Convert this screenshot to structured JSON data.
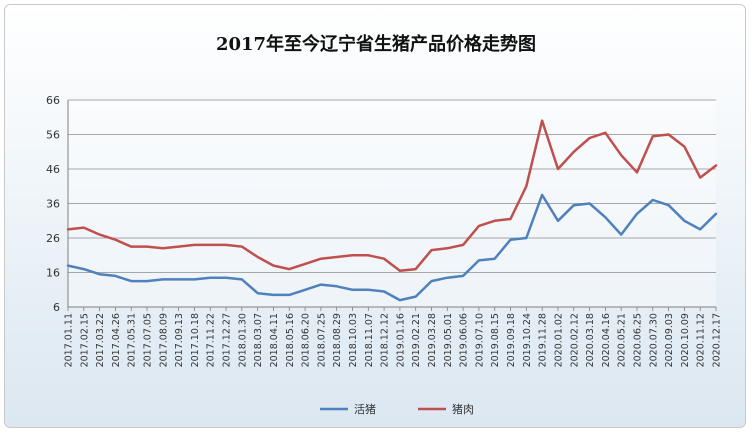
{
  "chart_data": {
    "type": "line",
    "title": "2017年至今辽宁省生猪产品价格走势图",
    "ylim": [
      6,
      66
    ],
    "y_ticks": [
      6,
      16,
      26,
      36,
      46,
      56,
      66
    ],
    "x_ticks": [
      "2017.01.11",
      "2017.02.15",
      "2017.03.22",
      "2017.04.26",
      "2017.05.31",
      "2017.07.05",
      "2017.08.09",
      "2017.09.13",
      "2017.10.18",
      "2017.11.22",
      "2017.12.27",
      "2018.01.30",
      "2018.03.07",
      "2018.04.11",
      "2018.05.16",
      "2018.06.20",
      "2018.07.25",
      "2018.08.29",
      "2018.10.03",
      "2018.11.07",
      "2018.12.12",
      "2019.01.16",
      "2019.02.21",
      "2019.03.28",
      "2019.05.01",
      "2019.06.06",
      "2019.07.10",
      "2019.08.15",
      "2019.09.18",
      "2019.10.24",
      "2019.11.28",
      "2020.01.02",
      "2020.02.12",
      "2020.03.18",
      "2020.04.16",
      "2020.05.21",
      "2020.06.25",
      "2020.07.30",
      "2020.09.03",
      "2020.10.09",
      "2020.11.12",
      "2020.12.17"
    ],
    "series": [
      {
        "name": "活猪",
        "color": "#4f81bd",
        "values": [
          18,
          17,
          15.5,
          15,
          13.5,
          13.5,
          14,
          14,
          14,
          14.5,
          14.5,
          14,
          10,
          9.5,
          9.5,
          11,
          12.5,
          12,
          11,
          11,
          10.5,
          8,
          9,
          13.5,
          14.5,
          15,
          19.5,
          20,
          25.5,
          26,
          38.5,
          31,
          35.5,
          36,
          32,
          27,
          33,
          37,
          35.5,
          31,
          28.5,
          33
        ]
      },
      {
        "name": "猪肉",
        "color": "#c0504d",
        "values": [
          28.5,
          29,
          27,
          25.5,
          23.5,
          23.5,
          23,
          23.5,
          24,
          24,
          24,
          23.5,
          20.5,
          18,
          17,
          18.5,
          20,
          20.5,
          21,
          21,
          20,
          16.5,
          17,
          22.5,
          23,
          24,
          29.5,
          31,
          31.5,
          41,
          60,
          46,
          51,
          55,
          56.5,
          50,
          45,
          55.5,
          56,
          52.5,
          43.5,
          47
        ]
      }
    ],
    "legend_position": "bottom"
  }
}
